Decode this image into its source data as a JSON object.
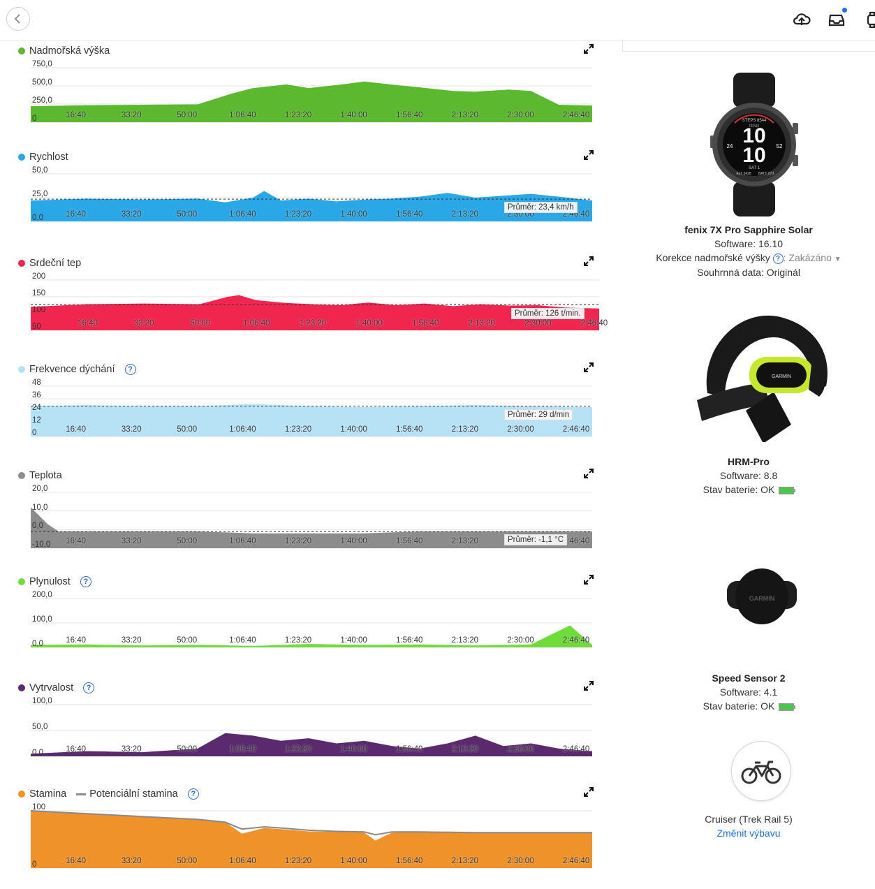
{
  "topbar": {
    "icons": [
      "back-icon",
      "cloud-upload-icon",
      "inbox-icon",
      "watch-icon"
    ]
  },
  "x_ticks": [
    "16:40",
    "33:20",
    "50:00",
    "1:06:40",
    "1:23:20",
    "1:40:00",
    "1:56:40",
    "2:13:20",
    "2:30:00",
    "2:46:40"
  ],
  "x_tick_seconds": [
    1000,
    2000,
    3000,
    4000,
    5000,
    6000,
    7000,
    8000,
    9000,
    10000
  ],
  "x_max_seconds": 10100,
  "charts": [
    {
      "id": "elevation",
      "title": "Nadmořská výška",
      "color": "#5cb82e",
      "help": false,
      "y_labels": [
        "750,0",
        "500,0",
        "250,0",
        "0"
      ],
      "y_values": [
        750,
        500,
        250,
        0
      ],
      "ymin": 0,
      "ymax": 750,
      "average": null,
      "avg_value": null,
      "chart_data": {
        "type": "area",
        "x": [
          0,
          1000,
          2000,
          3000,
          3600,
          4000,
          4600,
          5000,
          5600,
          6000,
          6600,
          7000,
          7600,
          8000,
          8600,
          9000,
          9500,
          10100
        ],
        "y": [
          220,
          235,
          240,
          245,
          390,
          470,
          520,
          470,
          520,
          560,
          510,
          480,
          430,
          420,
          450,
          430,
          240,
          230
        ]
      }
    },
    {
      "id": "speed",
      "title": "Rychlost",
      "color": "#2aa7e6",
      "help": false,
      "y_labels": [
        "50,0",
        "25,0",
        "0,0"
      ],
      "y_values": [
        50,
        25,
        0
      ],
      "ymin": 0,
      "ymax": 50,
      "average": "Průměr: 23,4 km/h",
      "avg_value": 23.4,
      "chart_data": {
        "type": "area",
        "x": [
          0,
          1000,
          2000,
          3000,
          3500,
          4000,
          4200,
          4500,
          5000,
          5500,
          6000,
          6500,
          7000,
          7500,
          8000,
          8500,
          9000,
          9500,
          10100
        ],
        "y": [
          22,
          24,
          23,
          24,
          20,
          25,
          32,
          22,
          24,
          21,
          23,
          24,
          26,
          30,
          25,
          27,
          29,
          26,
          22
        ]
      }
    },
    {
      "id": "hr",
      "title": "Srdeční tep",
      "color": "#f0264f",
      "help": false,
      "y_labels": [
        "200",
        "150",
        "100",
        "50"
      ],
      "y_values": [
        200,
        150,
        100,
        50
      ],
      "ymin": 50,
      "ymax": 200,
      "average": "Průměr: 126 t/min.",
      "avg_value": 126,
      "chart_data": {
        "type": "area",
        "x": [
          0,
          1000,
          2000,
          3000,
          3500,
          3700,
          4000,
          4500,
          5000,
          5500,
          6000,
          6500,
          7000,
          7500,
          8000,
          8500,
          9000,
          9500,
          10100
        ],
        "y": [
          120,
          128,
          130,
          128,
          150,
          155,
          140,
          132,
          128,
          125,
          133,
          125,
          130,
          122,
          128,
          124,
          125,
          118,
          115
        ]
      }
    },
    {
      "id": "resp",
      "title": "Frekvence dýchání",
      "color": "#b7e2f6",
      "help": true,
      "y_labels": [
        "48",
        "36",
        "24",
        "12",
        "0"
      ],
      "y_values": [
        48,
        36,
        24,
        12,
        0
      ],
      "ymin": 0,
      "ymax": 48,
      "average": "Průměr: 29 d/min",
      "avg_value": 29,
      "chart_data": {
        "type": "area",
        "x": [
          0,
          1000,
          2000,
          3000,
          4000,
          5000,
          6000,
          7000,
          8000,
          9000,
          10100
        ],
        "y": [
          29,
          30,
          29,
          29,
          31,
          29,
          28,
          29,
          30,
          29,
          28
        ]
      }
    },
    {
      "id": "temp",
      "title": "Teplota",
      "color": "#8c8c8c",
      "help": false,
      "y_labels": [
        "20,0",
        "10,0",
        "0,0",
        "-10,0"
      ],
      "y_values": [
        20,
        10,
        0,
        -10
      ],
      "ymin": -10,
      "ymax": 20,
      "average": "Průměr: -1,1 °C",
      "avg_value": -1.1,
      "chart_data": {
        "type": "area",
        "x": [
          0,
          100,
          300,
          500,
          1000,
          2000,
          3000,
          4000,
          5000,
          6000,
          7000,
          8000,
          9000,
          10100
        ],
        "y": [
          12,
          9,
          3,
          -1,
          -1,
          -1,
          -1,
          -2,
          -2,
          -2,
          -1,
          -1,
          -1,
          -1
        ]
      }
    },
    {
      "id": "flow",
      "title": "Plynulost",
      "color": "#6fdc3a",
      "help": true,
      "y_labels": [
        "200,0",
        "100,0",
        "0,0"
      ],
      "y_values": [
        200,
        100,
        0
      ],
      "ymin": 0,
      "ymax": 200,
      "average": null,
      "avg_value": null,
      "chart_data": {
        "type": "area",
        "x": [
          0,
          1000,
          2000,
          3000,
          4000,
          5000,
          6000,
          7000,
          8000,
          9000,
          9700,
          10100
        ],
        "y": [
          10,
          12,
          8,
          10,
          6,
          14,
          10,
          12,
          8,
          12,
          90,
          10
        ]
      }
    },
    {
      "id": "grit",
      "title": "Vytrvalost",
      "color": "#5b2a6e",
      "help": true,
      "y_labels": [
        "100,0",
        "50,0",
        "0,0"
      ],
      "y_values": [
        100,
        50,
        0
      ],
      "ymin": 0,
      "ymax": 100,
      "average": null,
      "avg_value": null,
      "chart_data": {
        "type": "area",
        "x": [
          0,
          1000,
          2000,
          3000,
          3500,
          4000,
          4500,
          5000,
          5500,
          6000,
          6500,
          7000,
          7500,
          8000,
          8500,
          9000,
          9500,
          10100
        ],
        "y": [
          5,
          10,
          8,
          15,
          45,
          40,
          30,
          35,
          25,
          30,
          20,
          15,
          25,
          40,
          20,
          25,
          15,
          10
        ]
      }
    },
    {
      "id": "stamina",
      "title": "Stamina",
      "color": "#f0922a",
      "help": true,
      "legend2": "Potenciální stamina",
      "legend2_color": "#8a8a8a",
      "y_labels": [
        "100",
        "0"
      ],
      "y_values": [
        100,
        0
      ],
      "ymin": 0,
      "ymax": 100,
      "average": null,
      "avg_value": null,
      "chart_data": {
        "type": "area",
        "x": [
          0,
          1000,
          2000,
          3000,
          3500,
          3800,
          4000,
          4200,
          4500,
          5000,
          5500,
          6000,
          6200,
          6500,
          7000,
          8000,
          9000,
          10100
        ],
        "y": [
          100,
          95,
          90,
          85,
          80,
          60,
          65,
          70,
          68,
          64,
          63,
          62,
          48,
          62,
          63,
          62,
          62,
          62
        ],
        "potential": [
          100,
          95,
          90,
          85,
          80,
          68,
          70,
          72,
          70,
          66,
          64,
          63,
          58,
          63,
          63,
          62,
          62,
          62
        ]
      }
    }
  ],
  "devices": [
    {
      "name": "fenix 7X Pro Sapphire Solar",
      "line1": "Software: 16.10",
      "altitude_label": "Korekce nadmořské výšky",
      "altitude_value": ": Zakázáno",
      "summary": "Souhrnná data: Originál",
      "watch_face": {
        "big1": "10",
        "big2": "10",
        "left": "24",
        "right": "52",
        "top": "STEPS 8544",
        "top2": "H 73 / L 60",
        "bottom": "SAT 1",
        "alt": "ALT 3428",
        "batt": "BATT 27d",
        "brand": "FENIX"
      }
    },
    {
      "name": "HRM-Pro",
      "line1": "Software: 8.8",
      "line2": "Stav baterie: OK",
      "brand": "GARMIN"
    },
    {
      "name": "Speed Sensor 2",
      "line1": "Software: 4.1",
      "line2": "Stav baterie: OK",
      "brand": "GARMIN"
    },
    {
      "name": "Cruiser (Trek Rail 5)",
      "link": "Změnit výbavu"
    }
  ]
}
